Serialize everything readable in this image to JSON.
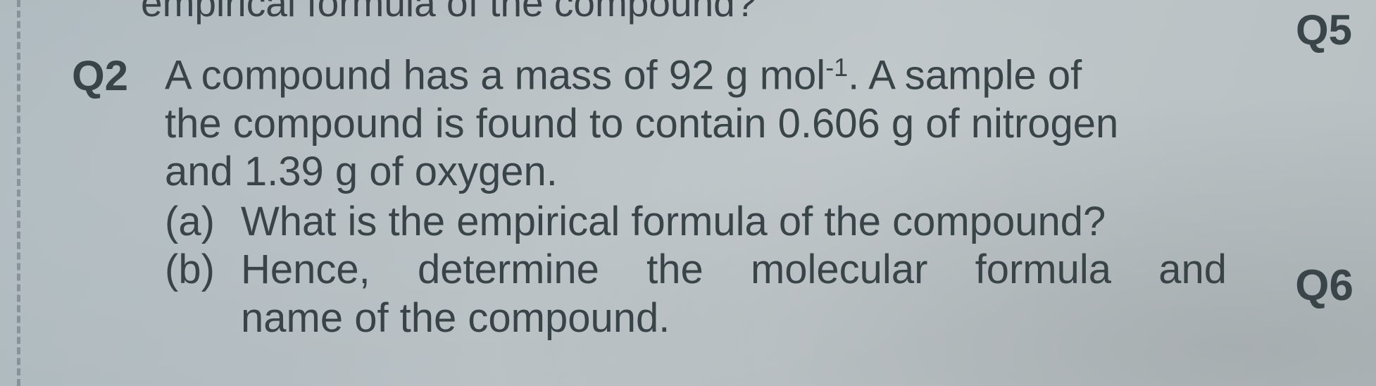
{
  "background_color": "#b7bfc2",
  "text_color": "#394448",
  "font_family": "Arial, Helvetica, sans-serif",
  "body_font_size_pt": 43,
  "label_font_size_pt": 45,
  "label_font_weight": 700,
  "partial_top_fragment": "empirical formula of the compound?",
  "q2": {
    "label": "Q2",
    "line1_before": "A compound has a mass of 92 g mol",
    "line1_sup": "-1",
    "line1_after": ". A sample of",
    "line2": "the compound is found to contain 0.606 g of nitrogen",
    "line3": "and 1.39 g of oxygen.",
    "parts": {
      "a": {
        "label": "(a)",
        "text": "What is the empirical formula of the compound?"
      },
      "b": {
        "label": "(b)",
        "line1": "Hence, determine the molecular formula and",
        "line2": "name of the compound."
      }
    }
  },
  "q5_label": "Q5",
  "q6_label": "Q6"
}
